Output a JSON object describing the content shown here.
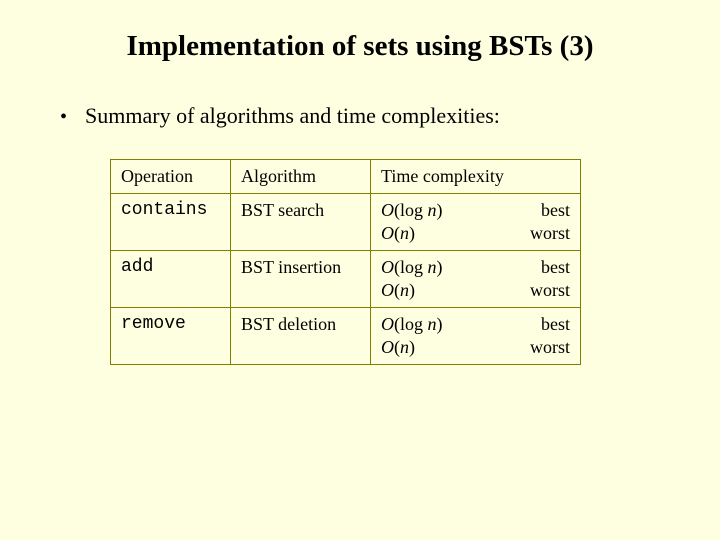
{
  "title": "Implementation of sets using BSTs (3)",
  "bullet": "Summary of algorithms and time complexities:",
  "table": {
    "headers": {
      "operation": "Operation",
      "algorithm": "Algorithm",
      "time_complexity": "Time complexity"
    },
    "rows": [
      {
        "operation": "contains",
        "operation_mono": true,
        "algorithm": "BST search",
        "tc_best_big": "O",
        "tc_best_expr": "(log ",
        "tc_best_var": "n",
        "tc_best_close": ")",
        "tc_best_label": "best",
        "tc_worst_big": "O",
        "tc_worst_expr": "(",
        "tc_worst_var": "n",
        "tc_worst_close": ")",
        "tc_worst_label": "worst"
      },
      {
        "operation": "add",
        "operation_mono": true,
        "algorithm": "BST insertion",
        "tc_best_big": "O",
        "tc_best_expr": "(log ",
        "tc_best_var": "n",
        "tc_best_close": ")",
        "tc_best_label": "best",
        "tc_worst_big": "O",
        "tc_worst_expr": "(",
        "tc_worst_var": "n",
        "tc_worst_close": ")",
        "tc_worst_label": "worst"
      },
      {
        "operation": "remove",
        "operation_mono": true,
        "algorithm": "BST deletion",
        "tc_best_big": "O",
        "tc_best_expr": "(log ",
        "tc_best_var": "n",
        "tc_best_close": ")",
        "tc_best_label": "best",
        "tc_worst_big": "O",
        "tc_worst_expr": "(",
        "tc_worst_var": "n",
        "tc_worst_close": ")",
        "tc_worst_label": "worst"
      }
    ]
  },
  "colors": {
    "background": "#fdffe0",
    "border": "#808000",
    "text": "#000000"
  }
}
